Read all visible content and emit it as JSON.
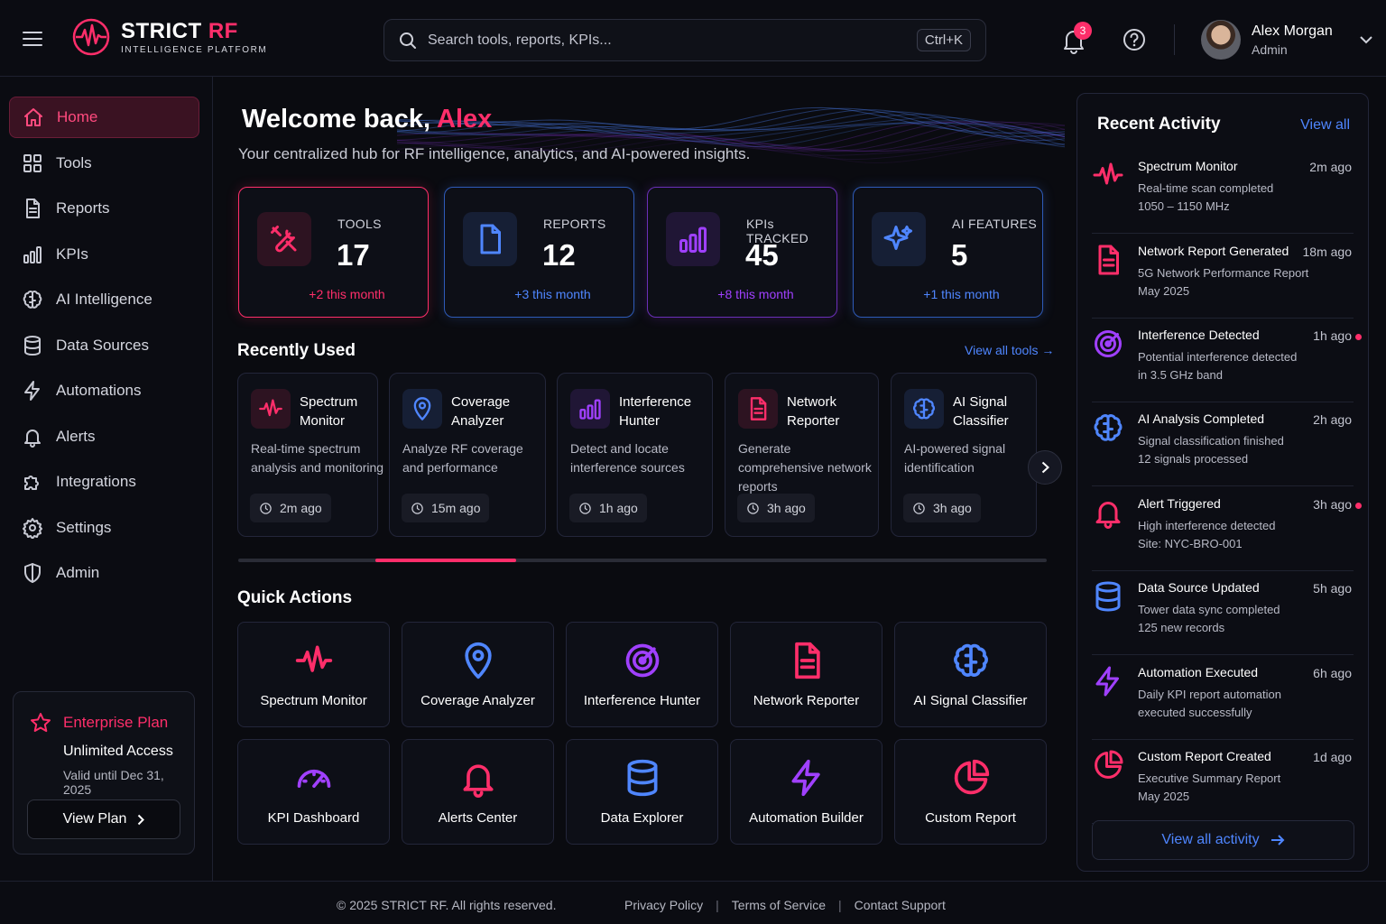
{
  "brand": {
    "name_main": "STRICT",
    "name_accent": "RF",
    "subtitle": "INTELLIGENCE PLATFORM",
    "accent_color": "#ff2e6a"
  },
  "header": {
    "search_placeholder": "Search tools, reports, KPIs...",
    "search_shortcut": "Ctrl+K",
    "notification_count": "3",
    "user": {
      "name": "Alex Morgan",
      "role": "Admin"
    }
  },
  "sidebar": {
    "items": [
      {
        "label": "Home",
        "icon": "home-icon",
        "active": true
      },
      {
        "label": "Tools",
        "icon": "grid-icon"
      },
      {
        "label": "Reports",
        "icon": "document-icon"
      },
      {
        "label": "KPIs",
        "icon": "bar-chart-icon"
      },
      {
        "label": "AI Intelligence",
        "icon": "brain-icon"
      },
      {
        "label": "Data Sources",
        "icon": "database-icon"
      },
      {
        "label": "Automations",
        "icon": "bolt-icon"
      },
      {
        "label": "Alerts",
        "icon": "bell-icon"
      },
      {
        "label": "Integrations",
        "icon": "puzzle-icon"
      },
      {
        "label": "Settings",
        "icon": "gear-icon"
      },
      {
        "label": "Admin",
        "icon": "shield-icon"
      }
    ],
    "plan": {
      "title": "Enterprise Plan",
      "access": "Unlimited Access",
      "valid": "Valid until Dec 31, 2025",
      "button": "View Plan"
    }
  },
  "welcome": {
    "prefix": "Welcome back,",
    "name": "Alex",
    "subtitle": "Your centralized hub for RF intelligence, analytics, and AI-powered insights."
  },
  "stats": [
    {
      "label": "TOOLS",
      "value": "17",
      "change": "+2 this month",
      "color": "#ff2e6a",
      "icon": "wrench-icon"
    },
    {
      "label": "REPORTS",
      "value": "12",
      "change": "+3 this month",
      "color": "#4f86ff",
      "icon": "file-icon"
    },
    {
      "label": "KPIs TRACKED",
      "value": "45",
      "change": "+8 this month",
      "color": "#a040ff",
      "icon": "bar-chart-icon"
    },
    {
      "label": "AI FEATURES",
      "value": "5",
      "change": "+1 this month",
      "color": "#4f86ff",
      "icon": "sparkles-icon"
    }
  ],
  "recently_used": {
    "title": "Recently Used",
    "view_all": "View all tools →",
    "tools": [
      {
        "name": "Spectrum Monitor",
        "desc": "Real-time spectrum analysis and monitoring",
        "time": "2m ago",
        "icon": "waveform-icon"
      },
      {
        "name": "Coverage Analyzer",
        "desc": "Analyze RF coverage and performance",
        "time": "15m ago",
        "icon": "map-pin-icon"
      },
      {
        "name": "Interference Hunter",
        "desc": "Detect and locate interference sources",
        "time": "1h ago",
        "icon": "bar-chart-icon"
      },
      {
        "name": "Network Reporter",
        "desc": "Generate comprehensive network reports",
        "time": "3h ago",
        "icon": "document-icon"
      },
      {
        "name": "AI Signal Classifier",
        "desc": "AI-powered signal identification",
        "time": "3h ago",
        "icon": "brain-icon"
      }
    ],
    "scroll_position": 0.17
  },
  "quick_actions": {
    "title": "Quick Actions",
    "items": [
      {
        "label": "Spectrum Monitor",
        "icon": "waveform-icon"
      },
      {
        "label": "Coverage Analyzer",
        "icon": "map-pin-icon"
      },
      {
        "label": "Interference Hunter",
        "icon": "target-icon"
      },
      {
        "label": "Network Reporter",
        "icon": "document-icon"
      },
      {
        "label": "AI Signal Classifier",
        "icon": "brain-icon"
      },
      {
        "label": "KPI Dashboard",
        "icon": "gauge-icon"
      },
      {
        "label": "Alerts Center",
        "icon": "bell-icon"
      },
      {
        "label": "Data Explorer",
        "icon": "database-icon"
      },
      {
        "label": "Automation Builder",
        "icon": "bolt-icon"
      },
      {
        "label": "Custom Report",
        "icon": "pie-chart-icon"
      }
    ]
  },
  "activity": {
    "title": "Recent Activity",
    "view_all": "View all",
    "button": "View all activity",
    "items": [
      {
        "title": "Spectrum Monitor",
        "line1": "Real-time scan completed",
        "line2": "1050 – 1150 MHz",
        "time": "2m ago",
        "icon": "waveform-icon",
        "unread": false
      },
      {
        "title": "Network Report Generated",
        "line1": "5G Network Performance Report",
        "line2": "May 2025",
        "time": "18m ago",
        "icon": "document-icon",
        "unread": false
      },
      {
        "title": "Interference Detected",
        "line1": "Potential interference detected",
        "line2": "in 3.5 GHz band",
        "time": "1h ago",
        "icon": "target-icon",
        "unread": true
      },
      {
        "title": "AI Analysis Completed",
        "line1": "Signal classification finished",
        "line2": "12 signals processed",
        "time": "2h ago",
        "icon": "brain-icon",
        "unread": false
      },
      {
        "title": "Alert Triggered",
        "line1": "High interference detected",
        "line2": "Site: NYC-BRO-001",
        "time": "3h ago",
        "icon": "bell-icon",
        "unread": true
      },
      {
        "title": "Data Source Updated",
        "line1": "Tower data sync completed",
        "line2": "125 new records",
        "time": "5h ago",
        "icon": "database-icon",
        "unread": false
      },
      {
        "title": "Automation Executed",
        "line1": "Daily KPI report automation",
        "line2": "executed successfully",
        "time": "6h ago",
        "icon": "bolt-icon",
        "unread": false
      },
      {
        "title": "Custom Report Created",
        "line1": "Executive Summary Report",
        "line2": "May 2025",
        "time": "1d ago",
        "icon": "pie-chart-icon",
        "unread": false
      }
    ]
  },
  "footer": {
    "copyright": "© 2025 STRICT RF. All rights reserved.",
    "links": [
      "Privacy Policy",
      "Terms of Service",
      "Contact Support"
    ]
  }
}
